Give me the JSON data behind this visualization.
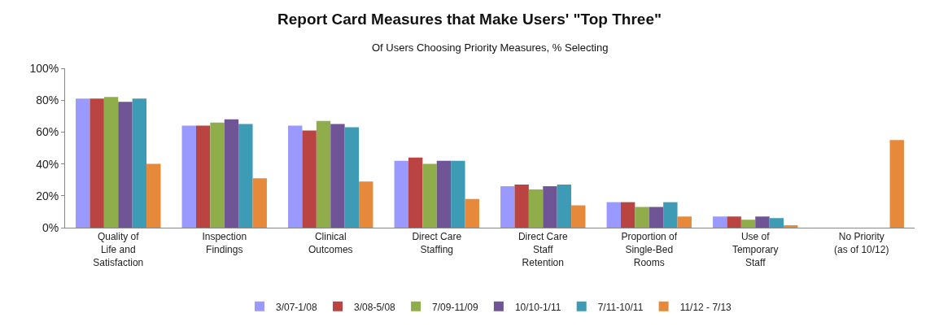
{
  "chart_data": {
    "type": "bar",
    "title": "Report Card Measures that Make Users' \"Top Three\"",
    "subtitle": "Of Users Choosing Priority Measures, % Selecting",
    "categories": [
      "Quality of\nLife and\nSatisfaction",
      "Inspection\nFindings",
      "Clinical\nOutcomes",
      "Direct Care\nStaffing",
      "Direct Care\nStaff\nRetention",
      "Proportion of\nSingle-Bed\nRooms",
      "Use of\nTemporary\nStaff",
      "No Priority\n(as of 10/12)"
    ],
    "series": [
      {
        "name": "3/07-1/08",
        "color": "#9999ff",
        "values": [
          81,
          64,
          64,
          42,
          26,
          16,
          7,
          null
        ]
      },
      {
        "name": "3/08-5/08",
        "color": "#b94441",
        "values": [
          81,
          64,
          61,
          44,
          27,
          16,
          7,
          null
        ]
      },
      {
        "name": "7/09-11/09",
        "color": "#8fae4b",
        "values": [
          82,
          66,
          67,
          40,
          24,
          13,
          5,
          null
        ]
      },
      {
        "name": "10/10-1/11",
        "color": "#6f5596",
        "values": [
          79,
          68,
          65,
          42,
          26,
          13,
          7,
          null
        ]
      },
      {
        "name": "7/11-10/11",
        "color": "#3e9bb5",
        "values": [
          81,
          65,
          63,
          42,
          27,
          16,
          6,
          null
        ]
      },
      {
        "name": "11/12 - 7/13",
        "color": "#e6893b",
        "values": [
          40,
          31,
          29,
          18,
          14,
          7,
          1.5,
          55
        ]
      }
    ],
    "ylim": [
      0,
      100
    ],
    "yticks": [
      {
        "value": 0,
        "label": "0%"
      },
      {
        "value": 20,
        "label": "20%"
      },
      {
        "value": 40,
        "label": "40%"
      },
      {
        "value": 60,
        "label": "60%"
      },
      {
        "value": 80,
        "label": "80%"
      },
      {
        "value": 100,
        "label": "100%"
      }
    ],
    "grid": false,
    "legend": "bottom"
  }
}
